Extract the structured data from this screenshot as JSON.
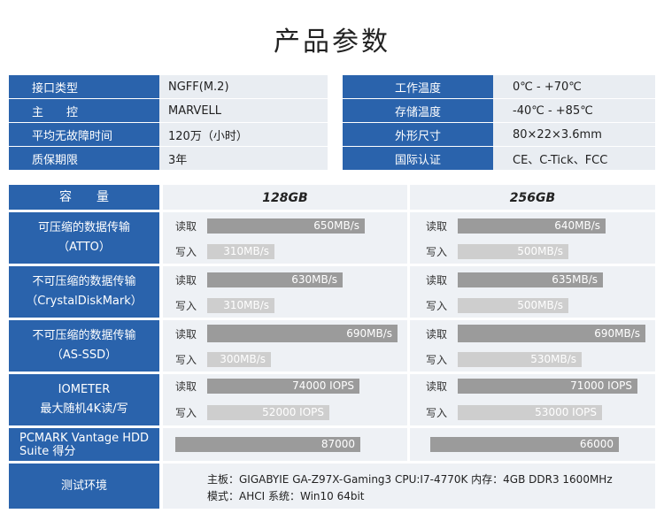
{
  "title": "产品参数",
  "specs_left": [
    {
      "label": "接口类型",
      "value": "NGFF(M.2)"
    },
    {
      "label": "主　　控",
      "value": "MARVELL"
    },
    {
      "label": "平均无故障时间",
      "value": "120万（小时）"
    },
    {
      "label": "质保期限",
      "value": "3年"
    }
  ],
  "specs_right": [
    {
      "label": "工作温度",
      "value": "0℃ - +70℃"
    },
    {
      "label": "存储温度",
      "value": "-40℃ - +85℃"
    },
    {
      "label": "外形尺寸",
      "value": "80×22×3.6mm"
    },
    {
      "label": "国际认证",
      "value": "CE、C-Tick、FCC"
    }
  ],
  "perf": {
    "capacity_label": "容　　量",
    "col1": "128GB",
    "col2": "256GB",
    "read_label": "读取",
    "write_label": "写入",
    "groups": [
      {
        "line1": "可压缩的数据传输",
        "line2": "（ATTO）",
        "c1_read": "650MB/s",
        "c1_write": "310MB/s",
        "c2_read": "640MB/s",
        "c2_write": "500MB/s"
      },
      {
        "line1": "不可压缩的数据传输",
        "line2": "（CrystalDiskMark）",
        "c1_read": "630MB/s",
        "c1_write": "310MB/s",
        "c2_read": "635MB/s",
        "c2_write": "500MB/s"
      },
      {
        "line1": "不可压缩的数据传输",
        "line2": "（AS-SSD）",
        "c1_read": "690MB/s",
        "c1_write": "300MB/s",
        "c2_read": "690MB/s",
        "c2_write": "530MB/s"
      },
      {
        "line1": "IOMETER",
        "line2": "最大随机4K读/写",
        "c1_read": "74000 IOPS",
        "c1_write": "52000 IOPS",
        "c2_read": "71000 IOPS",
        "c2_write": "53000 IOPS"
      }
    ],
    "pcmark": {
      "line1": "PCMARK Vantage HDD",
      "line2": "Suite  得分",
      "c1": "87000",
      "c2": "66000"
    },
    "env": {
      "label": "测试环境",
      "line1": "主板：GIGABYIE GA-Z97X-Gaming3   CPU:I7-4770K  内存：4GB DDR3 1600MHz",
      "line2": "模式：AHCI      系统：Win10 64bit"
    }
  }
}
